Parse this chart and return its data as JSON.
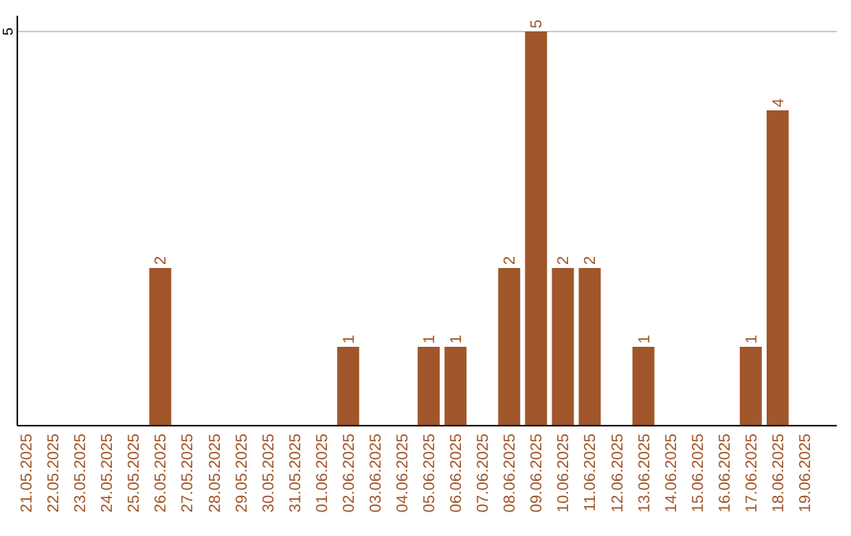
{
  "chart_data": {
    "type": "bar",
    "categories": [
      "21.05.2025",
      "22.05.2025",
      "23.05.2025",
      "24.05.2025",
      "25.05.2025",
      "26.05.2025",
      "27.05.2025",
      "28.05.2025",
      "29.05.2025",
      "30.05.2025",
      "31.05.2025",
      "01.06.2025",
      "02.06.2025",
      "03.06.2025",
      "04.06.2025",
      "05.06.2025",
      "06.06.2025",
      "07.06.2025",
      "08.06.2025",
      "09.06.2025",
      "10.06.2025",
      "11.06.2025",
      "12.06.2025",
      "13.06.2025",
      "14.06.2025",
      "15.06.2025",
      "16.06.2025",
      "17.06.2025",
      "18.06.2025",
      "19.06.2025"
    ],
    "values": [
      0,
      0,
      0,
      0,
      0,
      2,
      0,
      0,
      0,
      0,
      0,
      0,
      1,
      0,
      0,
      1,
      1,
      0,
      2,
      5,
      2,
      2,
      0,
      1,
      0,
      0,
      0,
      1,
      4,
      0
    ],
    "value_labels": [
      null,
      null,
      null,
      null,
      null,
      "2",
      null,
      null,
      null,
      null,
      null,
      null,
      "1",
      null,
      null,
      "1",
      "1",
      null,
      "2",
      "5",
      "2",
      "2",
      null,
      "1",
      null,
      null,
      null,
      "1",
      "4",
      null
    ],
    "color": "#a0562a",
    "ylim": [
      0,
      5.2
    ],
    "yticks": [
      5
    ],
    "grid": "y"
  }
}
